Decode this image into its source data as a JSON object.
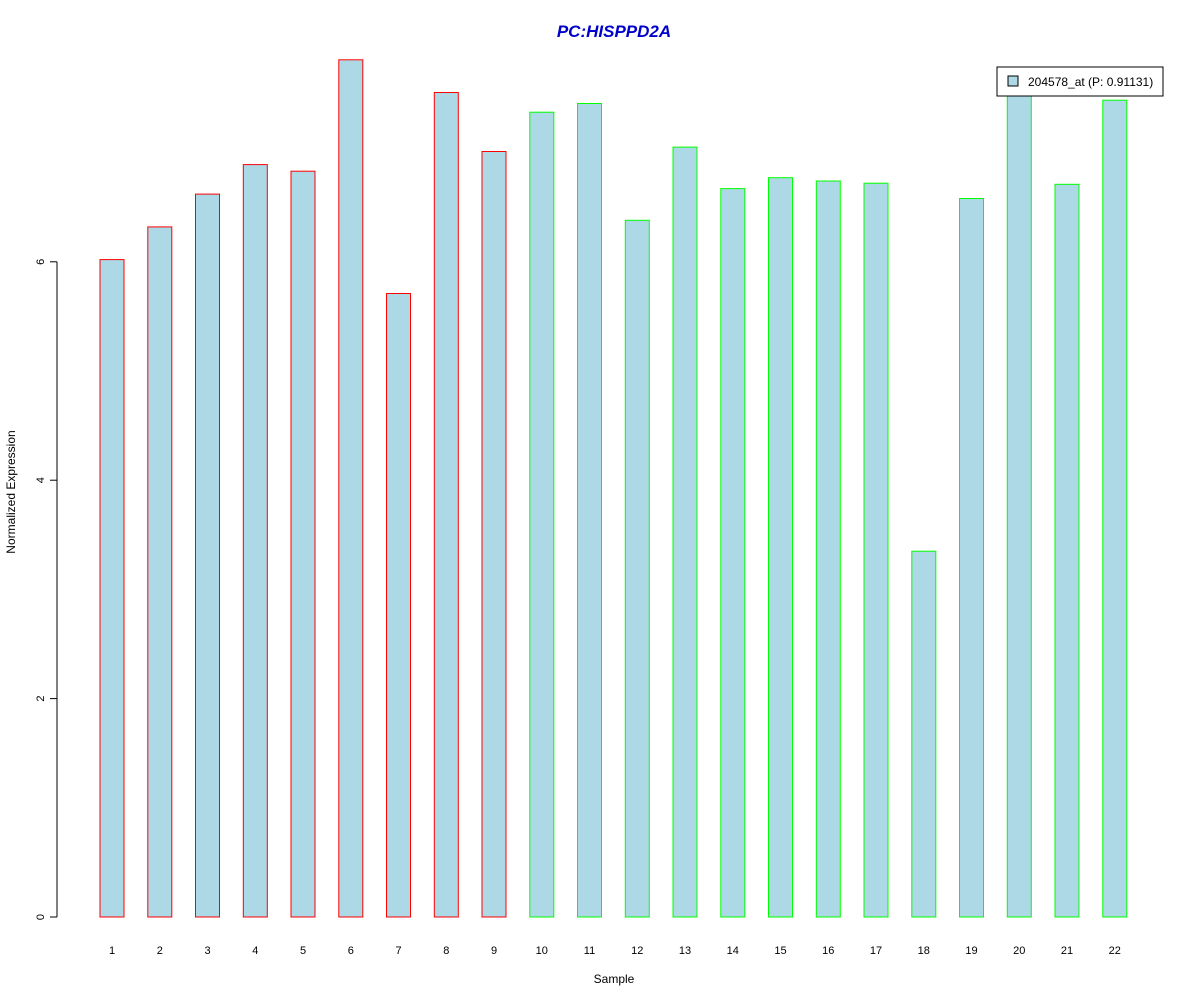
{
  "chart_data": {
    "type": "bar",
    "title": "PC:HISPPD2A",
    "title_color": "#0000CC",
    "xlabel": "Sample",
    "ylabel": "Normalized Expression",
    "categories": [
      "1",
      "2",
      "3",
      "4",
      "5",
      "6",
      "7",
      "8",
      "9",
      "10",
      "11",
      "12",
      "13",
      "14",
      "15",
      "16",
      "17",
      "18",
      "19",
      "20",
      "21",
      "22"
    ],
    "series": [
      {
        "name": "204578_at (P: 0.91131)",
        "values": [
          6.02,
          6.32,
          6.62,
          6.89,
          6.83,
          7.85,
          5.71,
          7.55,
          7.01,
          7.37,
          7.45,
          6.38,
          7.05,
          6.67,
          6.77,
          6.74,
          6.72,
          3.35,
          6.58,
          7.55,
          6.71,
          7.48
        ]
      }
    ],
    "bar_fill": "#ADD8E6",
    "border_colors": [
      "#FF0000",
      "#FF0000",
      "#FF0000",
      "#FF0000",
      "#FF0000",
      "#FF0000",
      "#FF0000",
      "#FF0000",
      "#FF0000",
      "#00FF00",
      "#00FF00",
      "#00FF00",
      "#00FF00",
      "#00FF00",
      "#00FF00",
      "#00FF00",
      "#00FF00",
      "#00FF00",
      "#00FF00",
      "#00FF00",
      "#00FF00",
      "#00FF00"
    ],
    "yticks": [
      0,
      2,
      4,
      6
    ],
    "ylim": [
      0,
      7.85
    ],
    "grid": false,
    "legend_position": "top-right"
  }
}
